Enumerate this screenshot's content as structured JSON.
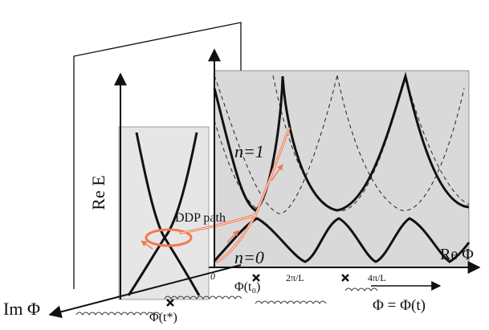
{
  "labels": {
    "re_e": "Re E",
    "n1": "n=1",
    "n0": "n=0",
    "ddp": "DDP path",
    "re_phi": "Re Φ",
    "im_phi": "Im Φ",
    "origin": "0",
    "tick_2pi": "2π/L",
    "tick_4pi": "4π/L",
    "phi_t0": "Φ(t₀)",
    "phi_tstar": "Φ(t*)",
    "phi_eq": "Φ = Φ(t)"
  },
  "colors": {
    "main_panel": "#d9d9d9",
    "side_panel": "#e4e4e4",
    "ddp_path": "#f07a52",
    "bands": "#111111"
  }
}
